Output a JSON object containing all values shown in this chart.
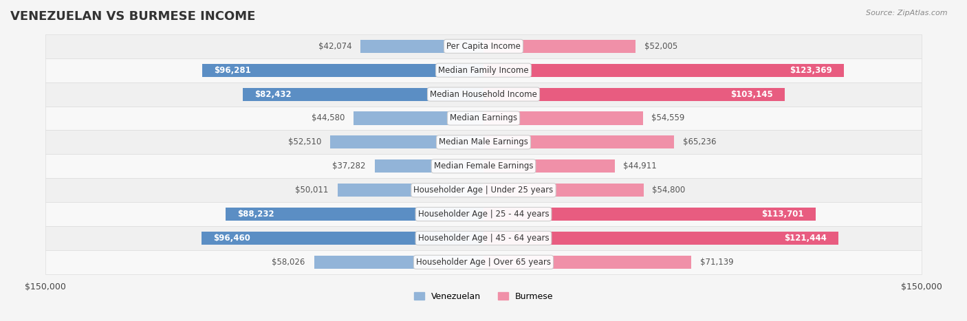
{
  "title": "VENEZUELAN VS BURMESE INCOME",
  "source": "Source: ZipAtlas.com",
  "categories": [
    "Per Capita Income",
    "Median Family Income",
    "Median Household Income",
    "Median Earnings",
    "Median Male Earnings",
    "Median Female Earnings",
    "Householder Age | Under 25 years",
    "Householder Age | 25 - 44 years",
    "Householder Age | 45 - 64 years",
    "Householder Age | Over 65 years"
  ],
  "venezuelan_values": [
    42074,
    96281,
    82432,
    44580,
    52510,
    37282,
    50011,
    88232,
    96460,
    58026
  ],
  "burmese_values": [
    52005,
    123369,
    103145,
    54559,
    65236,
    44911,
    54800,
    113701,
    121444,
    71139
  ],
  "venezuelan_labels": [
    "$42,074",
    "$96,281",
    "$82,432",
    "$44,580",
    "$52,510",
    "$37,282",
    "$50,011",
    "$88,232",
    "$96,460",
    "$58,026"
  ],
  "burmese_labels": [
    "$52,005",
    "$123,369",
    "$103,145",
    "$54,559",
    "$65,236",
    "$44,911",
    "$54,800",
    "$113,701",
    "$121,444",
    "$71,139"
  ],
  "max_value": 150000,
  "venezuelan_color": "#92b4d8",
  "burmese_color": "#f090a8",
  "venezuelan_dark_color": "#5b8ec4",
  "burmese_dark_color": "#e85c80",
  "background_color": "#f5f5f5",
  "row_bg_color": "#ffffff",
  "bar_height": 0.55,
  "label_color_light": "#666666",
  "label_color_dark": "#ffffff",
  "title_fontsize": 13,
  "label_fontsize": 8.5,
  "category_fontsize": 8.5,
  "axis_label_fontsize": 9,
  "legend_fontsize": 9,
  "source_fontsize": 8
}
